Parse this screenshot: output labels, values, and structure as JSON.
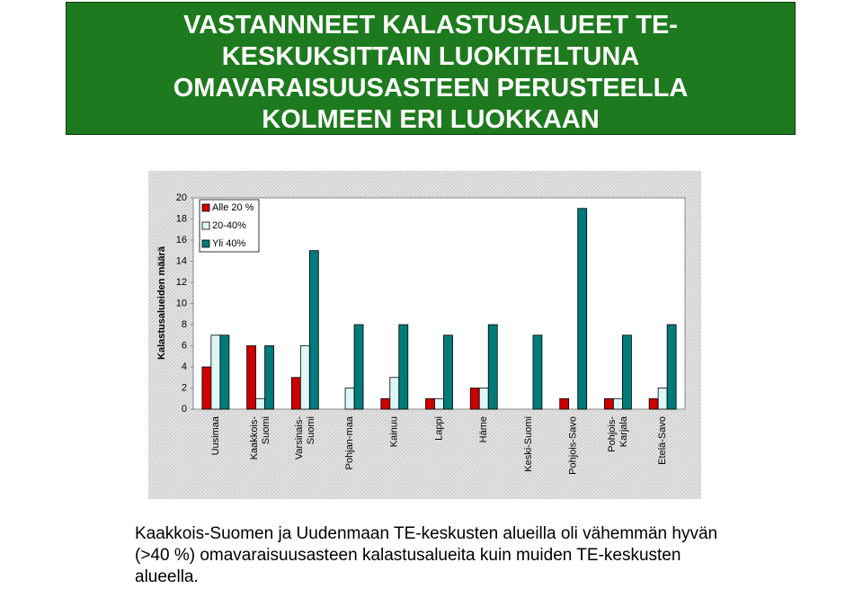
{
  "slide_title": "VASTANNNEET KALASTUSALUEET TE-KESKUKSITTAIN LUOKITELTUNA OMAVARAISUUSASTEEN PERUSTEELLA KOLMEEN ERI LUOKKAAN",
  "caption": "Kaakkois-Suomen ja Uudenmaan TE-keskusten alueilla oli vähemmän hyvän (>40 %) omavaraisuusasteen kalastusalueita kuin muiden TE-keskusten alueella.",
  "chart_data": {
    "type": "bar",
    "y_label": "Kalastusalueiden määrä",
    "categories": [
      "Uusimaa",
      "Kaakkois-\nSuomi",
      "Varsinais-\nSuomi",
      "Pohjan-maa",
      "Kainuu",
      "Lappi",
      "Häme",
      "Keski-Suomi",
      "Pohjois-Savo",
      "Pohjois-\nKarjala",
      "Etelä-Savo"
    ],
    "series": [
      {
        "name": "Alle 20 %",
        "color": "#cc0000",
        "values": [
          4,
          6,
          3,
          0,
          1,
          1,
          2,
          0,
          1,
          1,
          1
        ]
      },
      {
        "name": "20-40%",
        "color": "#ddf6f6",
        "values": [
          7,
          1,
          6,
          2,
          3,
          1,
          2,
          0,
          0,
          1,
          2
        ]
      },
      {
        "name": "Yli 40%",
        "color": "#007a7a",
        "values": [
          7,
          6,
          15,
          8,
          8,
          7,
          8,
          7,
          19,
          7,
          8
        ]
      }
    ],
    "ylim": [
      0,
      20
    ],
    "yticks": [
      0,
      2,
      4,
      6,
      8,
      10,
      12,
      14,
      16,
      18,
      20
    ],
    "legend": "top-left"
  }
}
